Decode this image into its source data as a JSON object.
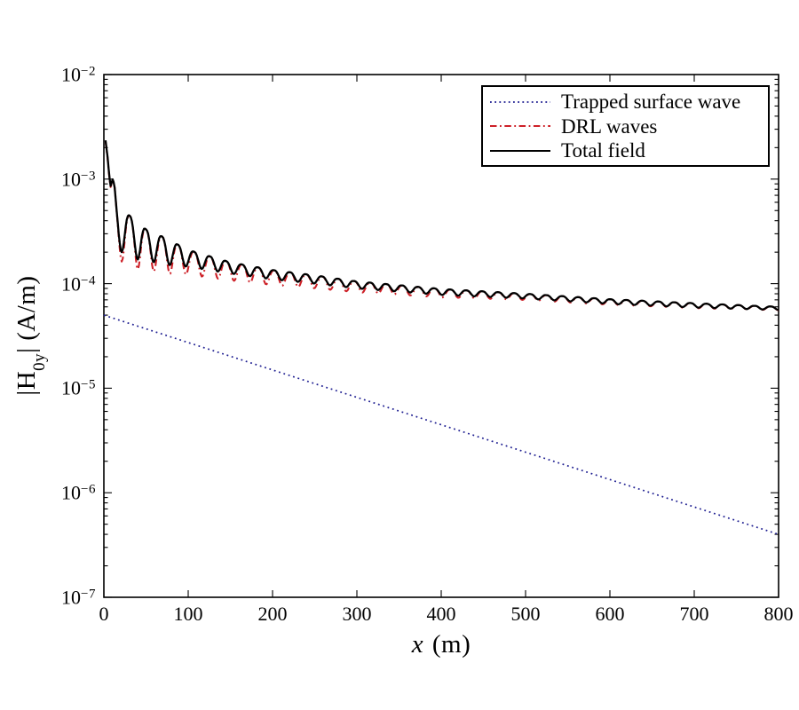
{
  "figure": {
    "background": "#ffffff",
    "kind": "log-linear line plot, boxed axes, no grid"
  },
  "axes": {
    "x_title": {
      "italic": "x",
      "rest": " (m)"
    },
    "y_title": {
      "p1": "|H",
      "sub": "0y",
      "p2": "| (A/m)"
    },
    "x_range": [
      0,
      800
    ],
    "x_ticks": [
      0,
      100,
      200,
      300,
      400,
      500,
      600,
      700,
      800
    ],
    "y_scale": "log10",
    "y_tick_exponents": [
      -2,
      -3,
      -4,
      -5,
      -6,
      -7
    ],
    "y_minor_tick_mantissas": [
      2,
      3,
      4,
      5,
      6,
      7,
      8,
      9
    ],
    "grid": false,
    "axis_color": "#000000"
  },
  "legend": {
    "position": "top-right inside plot",
    "border_color": "#000000",
    "items": [
      {
        "label": "Trapped surface wave",
        "color": "#1c1c90",
        "line_style": "dotted"
      },
      {
        "label": "DRL waves",
        "color": "#cd2027",
        "line_style": "dash-dot"
      },
      {
        "label": "Total field",
        "color": "#000000",
        "line_style": "solid"
      }
    ]
  },
  "chart_data": {
    "type": "line",
    "title": "",
    "xlabel": "x (m)",
    "ylabel": "|H0y| (A/m)",
    "xlim": [
      0,
      800
    ],
    "ylim_log10": [
      -7,
      -2
    ],
    "legend_position": "top-right",
    "series": [
      {
        "name": "Trapped surface wave",
        "color": "#1c1c90",
        "line_style": "dotted",
        "dash": [
          1.8,
          3.8
        ],
        "width": 1.7,
        "model": "log_linear",
        "points": [
          [
            0,
            5e-05
          ],
          [
            800,
            4e-07
          ]
        ]
      },
      {
        "name": "Total field",
        "color": "#000000",
        "line_style": "solid",
        "dash": null,
        "width": 2.3,
        "model": "damped_ripple",
        "head_points": [
          [
            2,
            0.00235
          ],
          [
            4.5,
            0.0016
          ],
          [
            6.5,
            0.00105
          ],
          [
            8,
            0.00086
          ],
          [
            10.5,
            0.001
          ],
          [
            12.5,
            0.00088
          ],
          [
            15,
            0.00052
          ],
          [
            17,
            0.00034
          ]
        ],
        "ripple": {
          "period_m": 19,
          "peak_x0": 30.5,
          "start_x": 17,
          "dip_sharpen": 1.45
        },
        "peak_envelope": [
          [
            17,
            0.00055
          ],
          [
            30,
            0.00045
          ],
          [
            50,
            0.00033
          ],
          [
            70,
            0.00028
          ],
          [
            100,
            0.00021
          ],
          [
            150,
            0.00016
          ],
          [
            200,
            0.000135
          ],
          [
            250,
            0.00012
          ],
          [
            300,
            0.000105
          ],
          [
            400,
            8.9e-05
          ],
          [
            500,
            8e-05
          ],
          [
            600,
            7.1e-05
          ],
          [
            700,
            6.5e-05
          ],
          [
            800,
            6e-05
          ]
        ],
        "dip_envelope": [
          [
            17,
            0.00021
          ],
          [
            21,
            0.0002
          ],
          [
            40,
            0.00017
          ],
          [
            59,
            0.00016
          ],
          [
            78,
            0.00015
          ],
          [
            100,
            0.000145
          ],
          [
            150,
            0.000125
          ],
          [
            200,
            0.00011
          ],
          [
            250,
            0.0001
          ],
          [
            300,
            9e-05
          ],
          [
            400,
            7.8e-05
          ],
          [
            500,
            7.2e-05
          ],
          [
            600,
            6.4e-05
          ],
          [
            700,
            5.9e-05
          ],
          [
            800,
            5.6e-05
          ]
        ]
      },
      {
        "name": "DRL waves",
        "color": "#cd2027",
        "line_style": "dash-dot",
        "dash": [
          7.5,
          3.8,
          1.8,
          3.8
        ],
        "width": 2.1,
        "model": "total_minus_trapped_ripple",
        "params": {
          "depth_scale": 0.42,
          "phase_shift_m": 1.2,
          "dip_sharpen": 1.2
        },
        "note": "nearly coincident with Total field; dips slightly deeper for x < 300 m"
      }
    ]
  }
}
